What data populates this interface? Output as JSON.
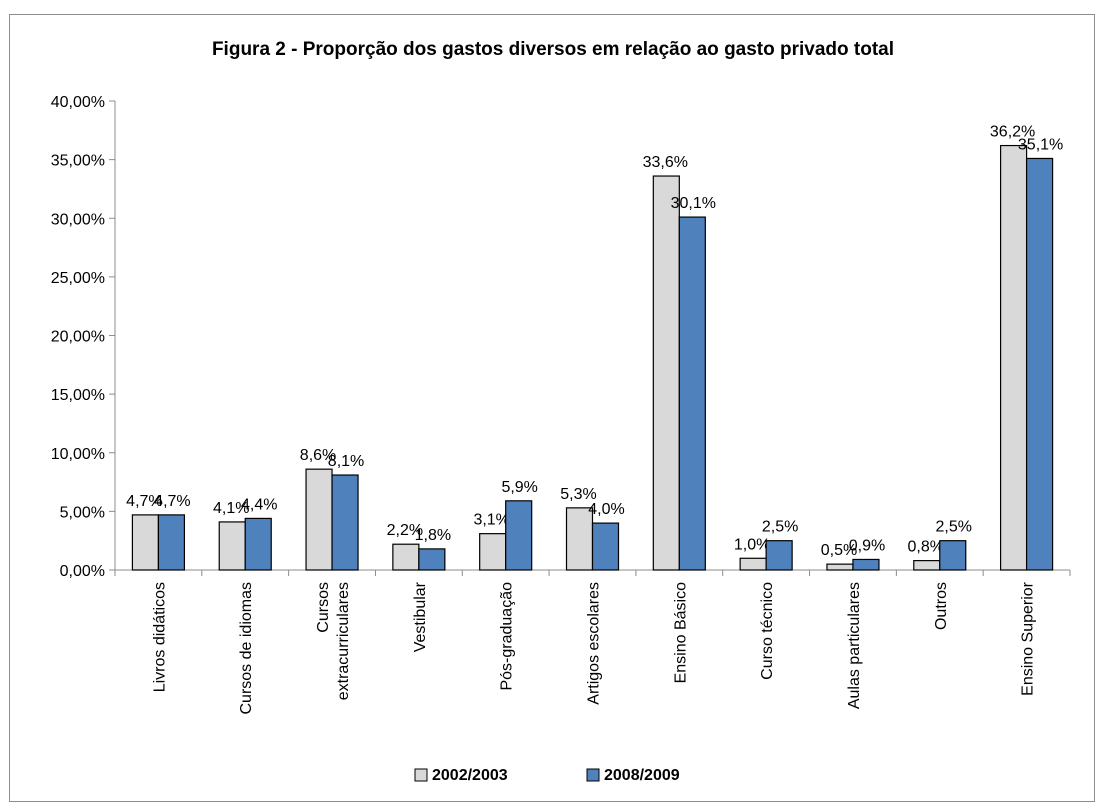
{
  "chart_data": {
    "type": "bar",
    "title": "Figura 2 - Proporção dos gastos diversos em relação ao gasto privado total",
    "xlabel": "",
    "ylabel": "",
    "ylim": [
      0,
      40
    ],
    "yticks": [
      "0,00%",
      "5,00%",
      "10,00%",
      "15,00%",
      "20,00%",
      "25,00%",
      "30,00%",
      "35,00%",
      "40,00%"
    ],
    "grid": false,
    "legend_position": "bottom",
    "categories": [
      [
        "Livros didáticos"
      ],
      [
        "Cursos de idiomas"
      ],
      [
        "Cursos",
        "extracurriculares"
      ],
      [
        "Vestibular"
      ],
      [
        "Pós-graduação"
      ],
      [
        "Artigos escolares"
      ],
      [
        "Ensino Básico"
      ],
      [
        "Curso técnico"
      ],
      [
        "Aulas particulares"
      ],
      [
        "Outros"
      ],
      [
        "Ensino Superior"
      ]
    ],
    "series": [
      {
        "name": "2002/2003",
        "color": "#d9d9d9",
        "values": [
          4.7,
          4.1,
          8.6,
          2.2,
          3.1,
          5.3,
          33.6,
          1.0,
          0.5,
          0.8,
          36.2
        ],
        "labels": [
          "4,7%",
          "4,1%",
          "8,6%",
          "2,2%",
          "3,1%",
          "5,3%",
          "33,6%",
          "1,0%",
          "0,5%",
          "0,8%",
          "36,2%"
        ]
      },
      {
        "name": "2008/2009",
        "color": "#4f81bd",
        "values": [
          4.7,
          4.4,
          8.1,
          1.8,
          5.9,
          4.0,
          30.1,
          2.5,
          0.9,
          2.5,
          35.1
        ],
        "labels": [
          "4,7%",
          "4,4%",
          "8,1%",
          "1,8%",
          "5,9%",
          "4,0%",
          "30,1%",
          "2,5%",
          "0,9%",
          "2,5%",
          "35,1%"
        ]
      }
    ]
  }
}
